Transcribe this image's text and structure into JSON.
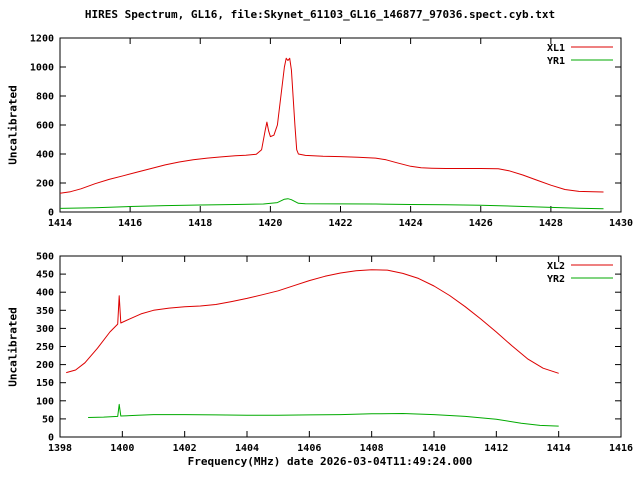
{
  "title": "HIRES Spectrum, GL16, file:Skynet_61103_GL16_146877_97036.spect.cyb.txt",
  "xlabel": "Frequency(MHz) date 2026-03-04T11:49:24.000",
  "colors": {
    "red": "#dd0000",
    "green": "#00aa00",
    "axis": "#000000",
    "background": "#ffffff"
  },
  "chart_data": [
    {
      "type": "line",
      "ylabel": "Uncalibrated",
      "xlim": [
        1414,
        1430
      ],
      "ylim": [
        0,
        1200
      ],
      "xticks": [
        1414,
        1416,
        1418,
        1420,
        1422,
        1424,
        1426,
        1428,
        1430
      ],
      "yticks": [
        0,
        200,
        400,
        600,
        800,
        1000,
        1200
      ],
      "grid": false,
      "legend_position": "top-right",
      "series": [
        {
          "name": "XL1",
          "color": "#dd0000",
          "points": [
            [
              1414.0,
              130
            ],
            [
              1414.3,
              140
            ],
            [
              1414.6,
              160
            ],
            [
              1415.0,
              195
            ],
            [
              1415.4,
              225
            ],
            [
              1415.8,
              250
            ],
            [
              1416.2,
              275
            ],
            [
              1416.6,
              300
            ],
            [
              1417.0,
              325
            ],
            [
              1417.4,
              345
            ],
            [
              1417.8,
              360
            ],
            [
              1418.2,
              372
            ],
            [
              1418.6,
              380
            ],
            [
              1419.0,
              388
            ],
            [
              1419.3,
              392
            ],
            [
              1419.6,
              398
            ],
            [
              1419.75,
              430
            ],
            [
              1419.85,
              560
            ],
            [
              1419.9,
              620
            ],
            [
              1419.95,
              560
            ],
            [
              1420.0,
              520
            ],
            [
              1420.1,
              530
            ],
            [
              1420.2,
              600
            ],
            [
              1420.3,
              800
            ],
            [
              1420.4,
              1000
            ],
            [
              1420.45,
              1060
            ],
            [
              1420.5,
              1045
            ],
            [
              1420.55,
              1060
            ],
            [
              1420.6,
              980
            ],
            [
              1420.7,
              600
            ],
            [
              1420.75,
              430
            ],
            [
              1420.8,
              400
            ],
            [
              1421.0,
              390
            ],
            [
              1421.5,
              385
            ],
            [
              1422.0,
              382
            ],
            [
              1422.5,
              378
            ],
            [
              1423.0,
              372
            ],
            [
              1423.3,
              360
            ],
            [
              1423.6,
              340
            ],
            [
              1424.0,
              315
            ],
            [
              1424.3,
              305
            ],
            [
              1424.6,
              302
            ],
            [
              1425.0,
              300
            ],
            [
              1425.5,
              300
            ],
            [
              1426.0,
              300
            ],
            [
              1426.5,
              298
            ],
            [
              1426.8,
              285
            ],
            [
              1427.2,
              255
            ],
            [
              1427.6,
              220
            ],
            [
              1428.0,
              185
            ],
            [
              1428.4,
              155
            ],
            [
              1428.8,
              142
            ],
            [
              1429.2,
              140
            ],
            [
              1429.5,
              138
            ]
          ]
        },
        {
          "name": "YR1",
          "color": "#00aa00",
          "points": [
            [
              1414.0,
              25
            ],
            [
              1415.0,
              30
            ],
            [
              1416.0,
              38
            ],
            [
              1417.0,
              44
            ],
            [
              1418.0,
              48
            ],
            [
              1419.0,
              52
            ],
            [
              1419.8,
              55
            ],
            [
              1420.2,
              65
            ],
            [
              1420.4,
              88
            ],
            [
              1420.5,
              92
            ],
            [
              1420.6,
              85
            ],
            [
              1420.8,
              60
            ],
            [
              1421.0,
              57
            ],
            [
              1422.0,
              56
            ],
            [
              1423.0,
              55
            ],
            [
              1424.0,
              52
            ],
            [
              1425.0,
              50
            ],
            [
              1426.0,
              46
            ],
            [
              1427.0,
              40
            ],
            [
              1428.0,
              32
            ],
            [
              1428.8,
              26
            ],
            [
              1429.5,
              22
            ]
          ]
        }
      ]
    },
    {
      "type": "line",
      "ylabel": "Uncalibrated",
      "xlim": [
        1398,
        1416
      ],
      "ylim": [
        0,
        500
      ],
      "xticks": [
        1398,
        1400,
        1402,
        1404,
        1406,
        1408,
        1410,
        1412,
        1414,
        1416
      ],
      "yticks": [
        0,
        50,
        100,
        150,
        200,
        250,
        300,
        350,
        400,
        450,
        500
      ],
      "grid": false,
      "legend_position": "top-right",
      "series": [
        {
          "name": "XL2",
          "color": "#dd0000",
          "points": [
            [
              1398.2,
              178
            ],
            [
              1398.5,
              185
            ],
            [
              1398.8,
              205
            ],
            [
              1399.2,
              245
            ],
            [
              1399.6,
              290
            ],
            [
              1399.85,
              312
            ],
            [
              1399.9,
              390
            ],
            [
              1399.95,
              315
            ],
            [
              1400.2,
              325
            ],
            [
              1400.6,
              340
            ],
            [
              1401.0,
              350
            ],
            [
              1401.5,
              356
            ],
            [
              1402.0,
              360
            ],
            [
              1402.5,
              362
            ],
            [
              1403.0,
              366
            ],
            [
              1403.5,
              374
            ],
            [
              1404.0,
              383
            ],
            [
              1404.5,
              393
            ],
            [
              1405.0,
              404
            ],
            [
              1405.5,
              418
            ],
            [
              1406.0,
              432
            ],
            [
              1406.5,
              444
            ],
            [
              1407.0,
              453
            ],
            [
              1407.5,
              459
            ],
            [
              1408.0,
              462
            ],
            [
              1408.5,
              461
            ],
            [
              1409.0,
              452
            ],
            [
              1409.5,
              438
            ],
            [
              1410.0,
              417
            ],
            [
              1410.5,
              391
            ],
            [
              1411.0,
              360
            ],
            [
              1411.5,
              326
            ],
            [
              1412.0,
              290
            ],
            [
              1412.5,
              252
            ],
            [
              1413.0,
              216
            ],
            [
              1413.5,
              190
            ],
            [
              1414.0,
              176
            ]
          ]
        },
        {
          "name": "YR2",
          "color": "#00aa00",
          "points": [
            [
              1398.9,
              54
            ],
            [
              1399.4,
              55
            ],
            [
              1399.85,
              57
            ],
            [
              1399.9,
              90
            ],
            [
              1399.95,
              58
            ],
            [
              1400.5,
              60
            ],
            [
              1401.0,
              62
            ],
            [
              1402.0,
              62
            ],
            [
              1403.0,
              61
            ],
            [
              1404.0,
              60
            ],
            [
              1405.0,
              60
            ],
            [
              1406.0,
              61
            ],
            [
              1407.0,
              62
            ],
            [
              1408.0,
              64
            ],
            [
              1409.0,
              65
            ],
            [
              1410.0,
              62
            ],
            [
              1411.0,
              57
            ],
            [
              1412.0,
              49
            ],
            [
              1412.8,
              38
            ],
            [
              1413.4,
              32
            ],
            [
              1414.0,
              30
            ]
          ]
        }
      ]
    }
  ]
}
